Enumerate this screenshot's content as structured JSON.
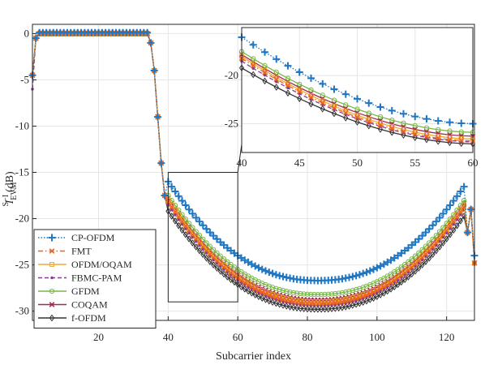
{
  "chart_data": {
    "type": "line",
    "xlabel": "Subcarrier index",
    "ylabel": {
      "base": "I",
      "sup": "S−I",
      "sub": "EVM",
      "unit": "(dB)"
    },
    "xlim": [
      1,
      128
    ],
    "ylim": [
      -31,
      1
    ],
    "xticks": [
      20,
      40,
      60,
      80,
      100,
      120
    ],
    "yticks": [
      0,
      -5,
      -10,
      -15,
      -20,
      -25,
      -30
    ],
    "grid": true,
    "legend_position": "bottom-left",
    "series": [
      {
        "name": "CP-OFDM",
        "color": "#1f77c4",
        "marker": "plus",
        "style": "dotted",
        "floor": -26.7,
        "k": 0.55,
        "inset": {
          "at40": -16.0,
          "at60": -25.0
        }
      },
      {
        "name": "FMT",
        "color": "#e8641e",
        "marker": "x",
        "style": "dashdot",
        "floor": -29.2,
        "k": 0.55,
        "inset": {
          "at40": -18.2,
          "at60": -26.8
        }
      },
      {
        "name": "OFDM/OQAM",
        "color": "#f0a830",
        "marker": "square",
        "style": "solid",
        "floor": -29.0,
        "k": 0.55,
        "inset": {
          "at40": -18.0,
          "at60": -26.6
        }
      },
      {
        "name": "FBMC-PAM",
        "color": "#8a3a96",
        "marker": "dot",
        "style": "dashed",
        "floor": -29.4,
        "k": 0.55,
        "inset": {
          "at40": -18.5,
          "at60": -26.9
        }
      },
      {
        "name": "GFDM",
        "color": "#7ab648",
        "marker": "circle",
        "style": "solid",
        "floor": -28.2,
        "k": 0.55,
        "inset": {
          "at40": -17.5,
          "at60": -25.9
        }
      },
      {
        "name": "COQAM",
        "color": "#a52a4a",
        "marker": "x",
        "style": "solid",
        "floor": -28.8,
        "k": 0.55,
        "inset": {
          "at40": -17.8,
          "at60": -26.3
        }
      },
      {
        "name": "f-OFDM",
        "color": "#333333",
        "marker": "diamond",
        "style": "solid",
        "floor": -29.8,
        "k": 0.55,
        "inset": {
          "at40": -19.2,
          "at60": -27.1
        }
      }
    ],
    "inset": {
      "xlim": [
        40,
        60
      ],
      "ylim": [
        -28,
        -15
      ],
      "xticks": [
        40,
        45,
        50,
        55,
        60
      ],
      "yticks": [
        -20,
        -25
      ],
      "zoom_box": {
        "x": [
          40,
          60
        ],
        "y": [
          -29,
          -15
        ]
      }
    }
  }
}
